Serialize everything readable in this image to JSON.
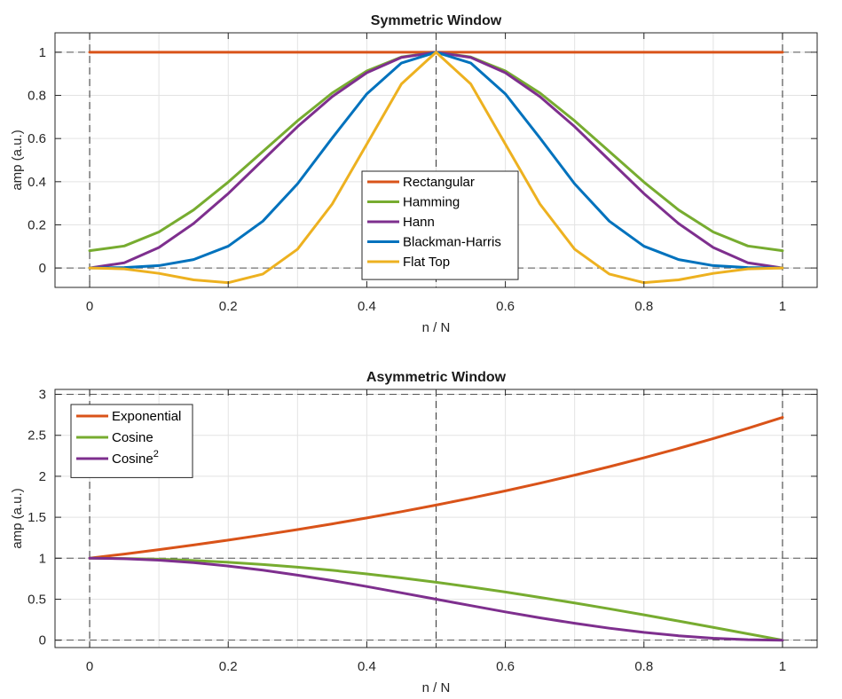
{
  "chart_data": [
    {
      "type": "line",
      "title": "Symmetric Window",
      "xlabel": "n / N",
      "ylabel": "amp (a.u.)",
      "xlim": [
        -0.05,
        1.05
      ],
      "ylim": [
        -0.09,
        1.09
      ],
      "xticks": [
        0,
        0.2,
        0.4,
        0.6,
        0.8,
        1
      ],
      "xtick_labels": [
        "0",
        "0.2",
        "0.4",
        "0.6",
        "0.8",
        "1"
      ],
      "yticks": [
        0,
        0.2,
        0.4,
        0.6,
        0.8,
        1
      ],
      "ytick_labels": [
        "0",
        "0.2",
        "0.4",
        "0.6",
        "0.8",
        "1"
      ],
      "grid": true,
      "legend_position": "lower-center",
      "reference_lines": {
        "vertical": [
          0,
          0.5,
          1
        ],
        "horizontal": [
          0,
          1
        ]
      },
      "x": [
        0,
        0.05,
        0.1,
        0.15,
        0.2,
        0.25,
        0.3,
        0.35,
        0.4,
        0.45,
        0.5,
        0.55,
        0.6,
        0.65,
        0.7,
        0.75,
        0.8,
        0.85,
        0.9,
        0.95,
        1
      ],
      "series": [
        {
          "name": "Rectangular",
          "color": "#D95319",
          "values": [
            1,
            1,
            1,
            1,
            1,
            1,
            1,
            1,
            1,
            1,
            1,
            1,
            1,
            1,
            1,
            1,
            1,
            1,
            1,
            1,
            1
          ]
        },
        {
          "name": "Hamming",
          "color": "#77AC30",
          "values": [
            0.08,
            0.102,
            0.167,
            0.269,
            0.398,
            0.54,
            0.682,
            0.811,
            0.913,
            0.978,
            1,
            0.978,
            0.913,
            0.811,
            0.682,
            0.54,
            0.398,
            0.269,
            0.167,
            0.102,
            0.08
          ]
        },
        {
          "name": "Hann",
          "color": "#7E2F8E",
          "values": [
            0,
            0.024,
            0.095,
            0.206,
            0.345,
            0.5,
            0.655,
            0.794,
            0.905,
            0.976,
            1,
            0.976,
            0.905,
            0.794,
            0.655,
            0.5,
            0.345,
            0.206,
            0.095,
            0.024,
            0
          ]
        },
        {
          "name": "Blackman-Harris",
          "color": "#0072BD",
          "values": [
            0,
            0.002,
            0.011,
            0.039,
            0.101,
            0.217,
            0.39,
            0.602,
            0.807,
            0.95,
            1,
            0.95,
            0.807,
            0.602,
            0.39,
            0.217,
            0.101,
            0.039,
            0.011,
            0.002,
            0
          ]
        },
        {
          "name": "Flat Top",
          "color": "#EDB120",
          "values": [
            0,
            -0.004,
            -0.025,
            -0.055,
            -0.068,
            -0.028,
            0.087,
            0.296,
            0.574,
            0.853,
            1,
            0.853,
            0.574,
            0.296,
            0.087,
            -0.028,
            -0.068,
            -0.055,
            -0.025,
            -0.004,
            0
          ]
        }
      ]
    },
    {
      "type": "line",
      "title": "Asymmetric Window",
      "xlabel": "n / N",
      "ylabel": "amp (a.u.)",
      "xlim": [
        -0.05,
        1.05
      ],
      "ylim": [
        -0.09,
        3.06
      ],
      "xticks": [
        0,
        0.2,
        0.4,
        0.6,
        0.8,
        1
      ],
      "xtick_labels": [
        "0",
        "0.2",
        "0.4",
        "0.6",
        "0.8",
        "1"
      ],
      "yticks": [
        0,
        0.5,
        1,
        1.5,
        2,
        2.5,
        3
      ],
      "ytick_labels": [
        "0",
        "0.5",
        "1",
        "1.5",
        "2",
        "2.5",
        "3"
      ],
      "grid": true,
      "legend_position": "top-left",
      "reference_lines": {
        "vertical": [
          0,
          0.5,
          1
        ],
        "horizontal": [
          0,
          1,
          3
        ]
      },
      "x": [
        0,
        0.05,
        0.1,
        0.15,
        0.2,
        0.25,
        0.3,
        0.35,
        0.4,
        0.45,
        0.5,
        0.55,
        0.6,
        0.65,
        0.7,
        0.75,
        0.8,
        0.85,
        0.9,
        0.95,
        1
      ],
      "series": [
        {
          "name": "Exponential",
          "color": "#D95319",
          "values": [
            1,
            1.051,
            1.105,
            1.162,
            1.221,
            1.284,
            1.35,
            1.419,
            1.492,
            1.568,
            1.649,
            1.733,
            1.822,
            1.916,
            2.014,
            2.117,
            2.226,
            2.34,
            2.46,
            2.586,
            2.718
          ]
        },
        {
          "name": "Cosine",
          "name_sup": "",
          "color": "#77AC30",
          "values": [
            1,
            0.997,
            0.988,
            0.972,
            0.951,
            0.924,
            0.891,
            0.853,
            0.809,
            0.76,
            0.707,
            0.649,
            0.588,
            0.522,
            0.454,
            0.383,
            0.309,
            0.233,
            0.156,
            0.078,
            0
          ]
        },
        {
          "name": "Cosine",
          "name_sup": "2",
          "color": "#7E2F8E",
          "values": [
            1,
            0.994,
            0.976,
            0.946,
            0.905,
            0.854,
            0.794,
            0.727,
            0.655,
            0.578,
            0.5,
            0.422,
            0.345,
            0.273,
            0.206,
            0.146,
            0.095,
            0.054,
            0.024,
            0.006,
            0
          ]
        }
      ]
    }
  ]
}
